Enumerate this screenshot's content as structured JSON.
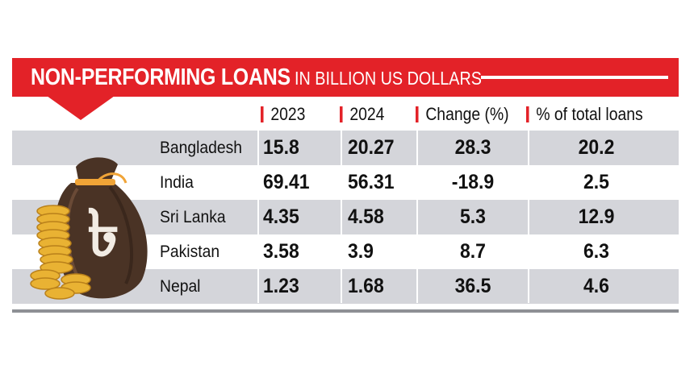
{
  "header": {
    "title": "NON-PERFORMING LOANS",
    "subtitle": "IN BILLION US DOLLARS"
  },
  "columns": [
    "2023",
    "2024",
    "Change (%)",
    "% of total loans"
  ],
  "illustration": {
    "icon": "money-bag-with-taka-symbol-and-coin-stacks",
    "glyph": "৳"
  },
  "colors": {
    "accent": "#e32228",
    "row_shade": "#d4d5da",
    "bag": "#4a3325",
    "coin": "#e9b233"
  },
  "chart_data": {
    "type": "table",
    "title": "NON-PERFORMING LOANS",
    "subtitle": "IN BILLION US DOLLARS",
    "columns": [
      "2023",
      "2024",
      "Change (%)",
      "% of total loans"
    ],
    "rows": [
      {
        "country": "Bangladesh",
        "y2023": "15.8",
        "y2024": "20.27",
        "change": "28.3",
        "share": "20.2"
      },
      {
        "country": "India",
        "y2023": "69.41",
        "y2024": "56.31",
        "change": "-18.9",
        "share": "2.5"
      },
      {
        "country": "Sri Lanka",
        "y2023": "4.35",
        "y2024": "4.58",
        "change": "5.3",
        "share": "12.9"
      },
      {
        "country": "Pakistan",
        "y2023": "3.58",
        "y2024": "3.9",
        "change": "8.7",
        "share": "6.3"
      },
      {
        "country": "Nepal",
        "y2023": "1.23",
        "y2024": "1.68",
        "change": "36.5",
        "share": "4.6"
      }
    ]
  }
}
